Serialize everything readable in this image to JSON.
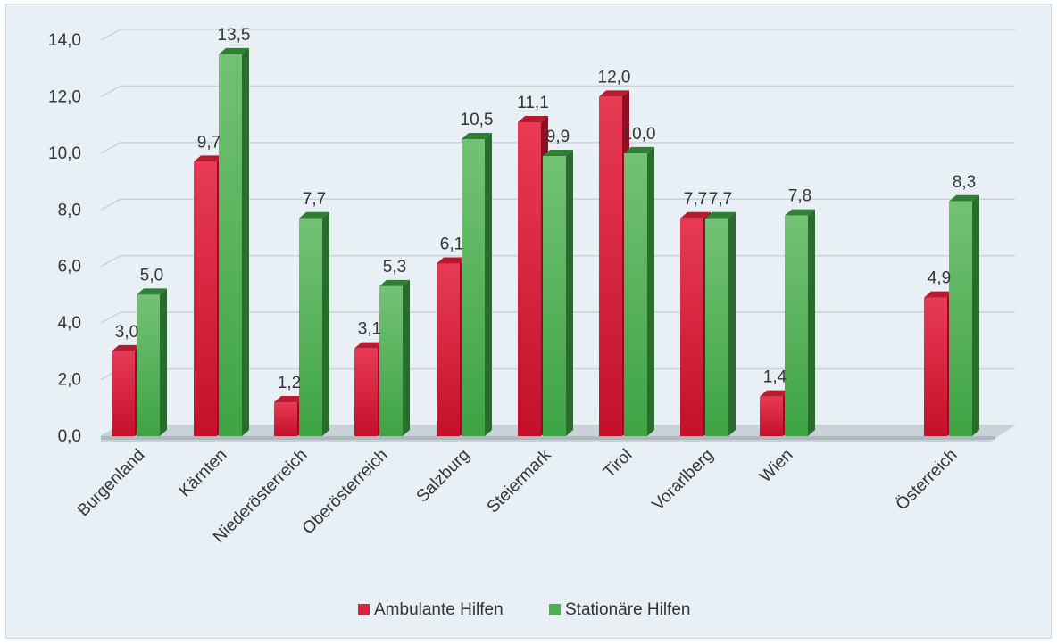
{
  "chart_data": {
    "type": "bar",
    "title": "",
    "xlabel": "",
    "ylabel": "",
    "ylim": [
      0,
      14
    ],
    "y_ticks": [
      "0,0",
      "2,0",
      "4,0",
      "6,0",
      "8,0",
      "10,0",
      "12,0",
      "14,0"
    ],
    "grid": true,
    "legend_position": "bottom",
    "categories": [
      "Burgenland",
      "Kärnten",
      "Niederösterreich",
      "Oberösterreich",
      "Salzburg",
      "Steiermark",
      "Tirol",
      "Vorarlberg",
      "Wien",
      "Österreich"
    ],
    "series": [
      {
        "name": "Ambulante Hilfen",
        "color": "#d8243c",
        "values": [
          3.0,
          9.7,
          1.2,
          3.1,
          6.1,
          11.1,
          12.0,
          7.7,
          1.4,
          4.9
        ],
        "labels": [
          "3,0",
          "9,7",
          "1,2",
          "3,1",
          "6,1",
          "11,1",
          "12,0",
          "7,7",
          "1,4",
          "4,9"
        ]
      },
      {
        "name": "Stationäre Hilfen",
        "color": "#4caf50",
        "values": [
          5.0,
          13.5,
          7.7,
          5.3,
          10.5,
          9.9,
          10.0,
          7.7,
          7.8,
          8.3
        ],
        "labels": [
          "5,0",
          "13,5",
          "7,7",
          "5,3",
          "10,5",
          "9,9",
          "10,0",
          "7,7",
          "7,8",
          "8,3"
        ]
      }
    ]
  }
}
